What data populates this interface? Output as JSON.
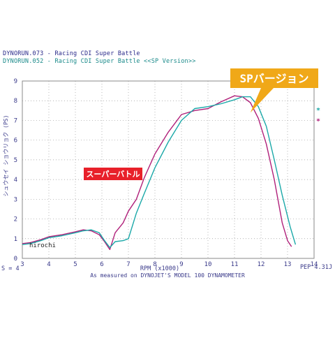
{
  "header": {
    "line1": "DYNORUN.073 - Racing CDI Super Battle",
    "line2": "DYNORUN.052 - Racing CDI Super Battle <<SP Version>>",
    "line1_color": "#2a2a8a",
    "line2_color": "#1a8a8a"
  },
  "chart_data": {
    "type": "line",
    "title": "",
    "xlabel": "RPM (x1000)",
    "ylabel": "シュウセイ ショウリョク (PS)",
    "xlim": [
      3,
      14
    ],
    "ylim": [
      0,
      9
    ],
    "xticks": [
      "3",
      "4",
      "5",
      "6",
      "7",
      "8",
      "9",
      "10",
      "11",
      "12",
      "13",
      "14"
    ],
    "yticks": [
      "0",
      "1",
      "2",
      "3",
      "4",
      "5",
      "6",
      "7",
      "8",
      "9"
    ],
    "grid": true,
    "footer_left": "S = 4",
    "footer_right": "PEP 4.31J",
    "footer_caption": "As measured on DYNOJET'S MODEL 100 DYNAMOMETER",
    "watermark": "hirochi",
    "legend_marks": [
      "*",
      "*"
    ],
    "annotations": [
      {
        "text": "スーパーバトル",
        "bg": "#e8202a",
        "color": "#ffffff",
        "x": 7.2,
        "y": 4.3
      },
      {
        "text": "SPバージョン",
        "bg": "#f0a818",
        "color": "#ffffff",
        "x": 11.6,
        "y": 7.4
      }
    ],
    "series": [
      {
        "color": "#b0207a",
        "x": [
          3.0,
          3.3,
          3.7,
          4.0,
          4.5,
          5.0,
          5.3,
          5.6,
          5.9,
          6.1,
          6.3,
          6.5,
          6.8,
          7.0,
          7.3,
          7.6,
          8.0,
          8.5,
          9.0,
          9.5,
          10.0,
          10.5,
          11.0,
          11.3,
          11.6,
          11.9,
          12.2,
          12.5,
          12.8,
          13.0,
          13.15
        ],
        "y": [
          0.75,
          0.8,
          0.95,
          1.1,
          1.2,
          1.35,
          1.45,
          1.4,
          1.2,
          0.85,
          0.45,
          1.3,
          1.8,
          2.4,
          3.0,
          4.1,
          5.3,
          6.4,
          7.3,
          7.5,
          7.6,
          7.95,
          8.25,
          8.2,
          7.9,
          7.1,
          5.8,
          4.0,
          1.8,
          0.9,
          0.6
        ]
      },
      {
        "color": "#1aa8a8",
        "x": [
          3.0,
          3.3,
          3.7,
          4.0,
          4.5,
          5.0,
          5.3,
          5.6,
          5.9,
          6.1,
          6.3,
          6.5,
          6.8,
          7.0,
          7.3,
          7.6,
          8.0,
          8.5,
          9.0,
          9.5,
          10.0,
          10.5,
          11.0,
          11.3,
          11.6,
          11.9,
          12.2,
          12.5,
          12.8,
          13.1,
          13.3
        ],
        "y": [
          0.7,
          0.75,
          0.9,
          1.05,
          1.15,
          1.3,
          1.4,
          1.45,
          1.3,
          0.9,
          0.55,
          0.85,
          0.9,
          1.0,
          2.3,
          3.3,
          4.6,
          5.9,
          7.0,
          7.6,
          7.7,
          7.85,
          8.05,
          8.2,
          8.2,
          7.7,
          6.7,
          5.0,
          3.2,
          1.6,
          0.7
        ]
      }
    ]
  }
}
